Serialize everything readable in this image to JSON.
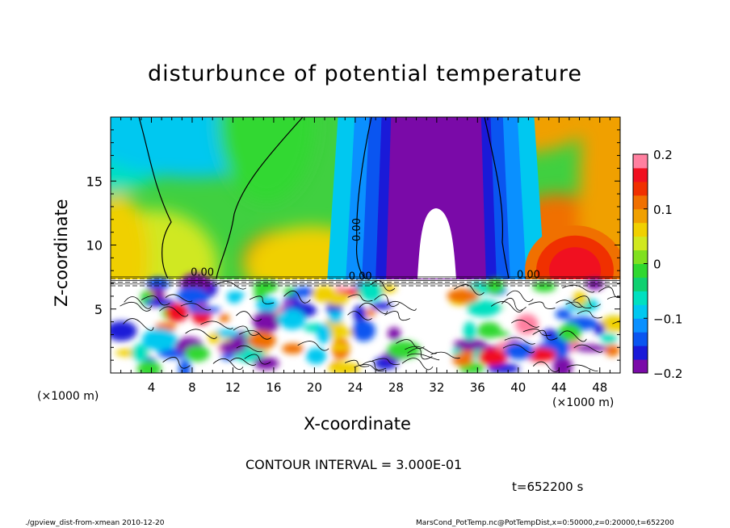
{
  "chart_data": {
    "type": "heatmap",
    "title": "disturbunce of potential temperature",
    "xlabel": "X-coordinate",
    "ylabel": "Z-coordinate",
    "x_unit_left": "(×1000 m)",
    "x_unit_right": "(×1000 m)",
    "xlim": [
      0,
      50
    ],
    "ylim": [
      0,
      20
    ],
    "xticks": [
      4,
      8,
      12,
      16,
      20,
      24,
      28,
      32,
      36,
      40,
      44,
      48
    ],
    "yticks": [
      5,
      10,
      15
    ],
    "colorbar": {
      "range": [
        -0.2,
        0.2
      ],
      "tick_labels": [
        "0.2",
        "0.1",
        "0",
        "−0.1",
        "−0.2"
      ],
      "tick_values": [
        0.2,
        0.1,
        0,
        -0.1,
        -0.2
      ],
      "colors": [
        "#7a0aa8",
        "#1a1ad8",
        "#0a55f0",
        "#0a90ff",
        "#00c8f0",
        "#00e0c0",
        "#10d070",
        "#30d830",
        "#80e020",
        "#d0e820",
        "#f0d000",
        "#f0a000",
        "#f07000",
        "#f03000",
        "#f01020",
        "#ff80a0"
      ]
    },
    "labeled_contour_value": "0.00",
    "contour_label_positions_data": [
      [
        9,
        7.6
      ],
      [
        24.5,
        11.2
      ],
      [
        24.5,
        7.3
      ],
      [
        41,
        7.4
      ]
    ],
    "annotations": {
      "contour_interval": "CONTOUR INTERVAL = 3.000E-01",
      "time": "t=652200 s"
    }
  },
  "footer": {
    "left": "./gpview_dist-from-xmean  2010-12-20",
    "right": "MarsCond_PotTemp.nc@PotTempDist,x=0:50000,z=0:20000,t=652200"
  }
}
